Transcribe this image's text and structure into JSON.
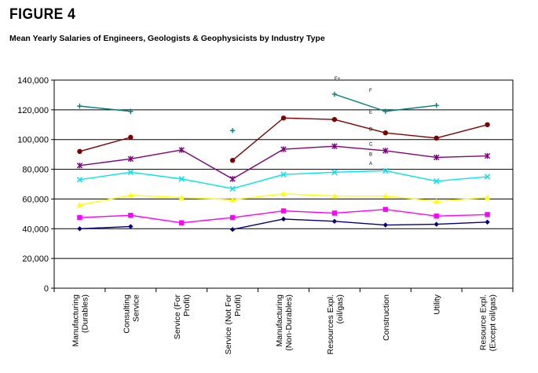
{
  "figure": {
    "label": "FIGURE 4",
    "title": "Mean Yearly Salaries of Engineers, Geologists & Geophysicists by Industry Type"
  },
  "chart_data": {
    "type": "line",
    "categories": [
      [
        "Manufacturing",
        "(Durables)"
      ],
      [
        "Consulting",
        "Service"
      ],
      [
        "Service (For",
        "Profit)"
      ],
      [
        "Service (Not For",
        "Profit)"
      ],
      [
        "Manufacturing",
        "(Non-Durables)"
      ],
      [
        "Resources Expl.",
        "(oil/gas)"
      ],
      [
        "Construction"
      ],
      [
        "Utility"
      ],
      [
        "Resource Expl.",
        "(Except oil/gas)"
      ]
    ],
    "ylim": [
      0,
      140000
    ],
    "yticks": [
      "0",
      "20,000",
      "40,000",
      "60,000",
      "80,000",
      "100,000",
      "120,000",
      "140,000"
    ],
    "grid": true,
    "series": [
      {
        "color": "#000080",
        "marker": "diamond",
        "values": [
          40000,
          41500,
          null,
          39500,
          46500,
          45000,
          42500,
          43000,
          44500
        ]
      },
      {
        "color": "#ff00ff",
        "marker": "square",
        "values": [
          47500,
          49000,
          44000,
          47500,
          52000,
          50500,
          53000,
          48500,
          49500
        ]
      },
      {
        "color": "#ffff00",
        "marker": "triangle",
        "values": [
          56000,
          62500,
          61000,
          59500,
          63500,
          62000,
          62000,
          58500,
          61000
        ]
      },
      {
        "color": "#00e5ee",
        "marker": "x",
        "values": [
          73000,
          78000,
          73500,
          67000,
          76500,
          78000,
          79000,
          72000,
          75000
        ]
      },
      {
        "color": "#800080",
        "marker": "star",
        "values": [
          82500,
          87000,
          93000,
          73500,
          93500,
          95500,
          92500,
          88000,
          89000
        ]
      },
      {
        "color": "#800000",
        "marker": "circle",
        "values": [
          92000,
          101500,
          null,
          86000,
          114500,
          113500,
          104500,
          101000,
          110000
        ]
      },
      {
        "color": "#008080",
        "marker": "plus",
        "values": [
          122500,
          119000,
          null,
          106000,
          null,
          130500,
          119000,
          123000,
          null
        ]
      }
    ],
    "segment_labels": [
      {
        "text": "F+",
        "x": 5,
        "y": 140000
      },
      {
        "text": "F",
        "x": 5.68,
        "y": 132000
      },
      {
        "text": "E",
        "x": 5.68,
        "y": 117500
      },
      {
        "text": "D",
        "x": 5.68,
        "y": 106000
      },
      {
        "text": "C",
        "x": 5.68,
        "y": 96000
      },
      {
        "text": "B",
        "x": 5.68,
        "y": 89000
      },
      {
        "text": "A",
        "x": 5.68,
        "y": 83000
      }
    ]
  }
}
